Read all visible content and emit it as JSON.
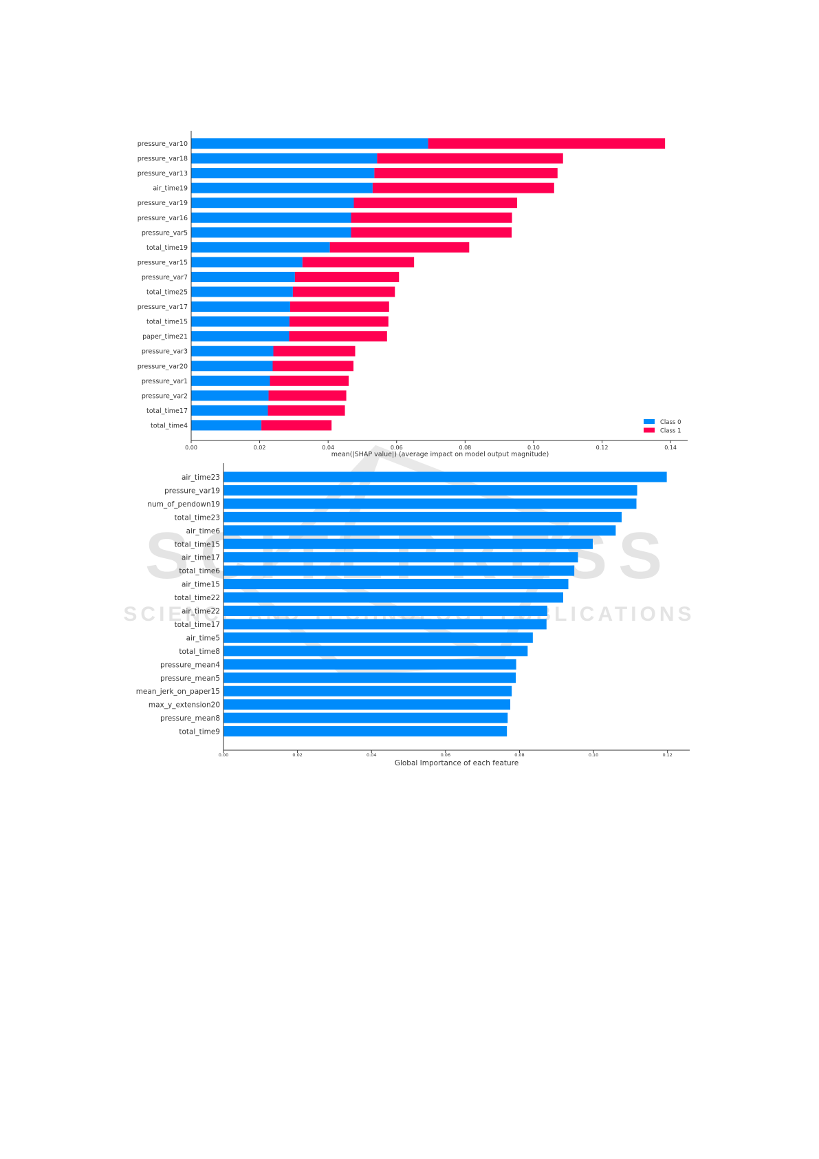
{
  "watermark": {
    "line1": "SCITEPRESS",
    "line2": "SCIENCE AND TECHNOLOGY PUBLICATIONS"
  },
  "colors": {
    "class0": "#008bfb",
    "class1": "#ff0051",
    "bar": "#008bfb",
    "axis": "#333333"
  },
  "chart_data": [
    {
      "type": "bar",
      "orientation": "horizontal",
      "stacked": true,
      "xlabel": "mean(|SHAP value|) (average impact on model output magnitude)",
      "xlim": [
        0,
        0.145
      ],
      "xticks": [
        "0.00",
        "0.02",
        "0.04",
        "0.06",
        "0.08",
        "0.10",
        "0.12",
        "0.14"
      ],
      "xtick_values": [
        0,
        0.02,
        0.04,
        0.06,
        0.08,
        0.1,
        0.12,
        0.14
      ],
      "legend_position": "lower-right",
      "categories": [
        "pressure_var10",
        "pressure_var18",
        "pressure_var13",
        "air_time19",
        "pressure_var19",
        "pressure_var16",
        "pressure_var5",
        "total_time19",
        "pressure_var15",
        "pressure_var7",
        "total_time25",
        "pressure_var17",
        "total_time15",
        "paper_time21",
        "pressure_var3",
        "pressure_var20",
        "pressure_var1",
        "pressure_var2",
        "total_time17",
        "total_time4"
      ],
      "series": [
        {
          "name": "Class 0",
          "values": [
            0.0692,
            0.0543,
            0.0535,
            0.053,
            0.0475,
            0.0467,
            0.0467,
            0.0405,
            0.0325,
            0.0303,
            0.0297,
            0.0289,
            0.0287,
            0.0286,
            0.024,
            0.0238,
            0.023,
            0.0226,
            0.0224,
            0.0205
          ]
        },
        {
          "name": "Class 1",
          "values": [
            0.0692,
            0.0543,
            0.0535,
            0.053,
            0.0477,
            0.047,
            0.0469,
            0.0407,
            0.0326,
            0.0304,
            0.0298,
            0.0289,
            0.0289,
            0.0286,
            0.0239,
            0.0236,
            0.023,
            0.0227,
            0.0225,
            0.0205
          ]
        }
      ]
    },
    {
      "type": "bar",
      "orientation": "horizontal",
      "xlabel": "Global Importance of each feature",
      "xlim": [
        0,
        0.126
      ],
      "xticks": [
        "0.00",
        "0.02",
        "0.04",
        "0.06",
        "0.08",
        "0.10",
        "0.12"
      ],
      "xtick_values": [
        0,
        0.02,
        0.04,
        0.06,
        0.08,
        0.1,
        0.12
      ],
      "categories": [
        "air_time23",
        "pressure_var19",
        "num_of_pendown19",
        "total_time23",
        "air_time6",
        "total_time15",
        "air_time17",
        "total_time6",
        "air_time15",
        "total_time22",
        "air_time22",
        "total_time17",
        "air_time5",
        "total_time8",
        "pressure_mean4",
        "pressure_mean5",
        "mean_jerk_on_paper15",
        "max_y_extension20",
        "pressure_mean8",
        "total_time9"
      ],
      "values": [
        0.1198,
        0.1118,
        0.1116,
        0.1076,
        0.106,
        0.0998,
        0.0958,
        0.0948,
        0.0932,
        0.0918,
        0.0875,
        0.0873,
        0.0836,
        0.0822,
        0.0791,
        0.079,
        0.0779,
        0.0775,
        0.0768,
        0.0766
      ]
    }
  ]
}
